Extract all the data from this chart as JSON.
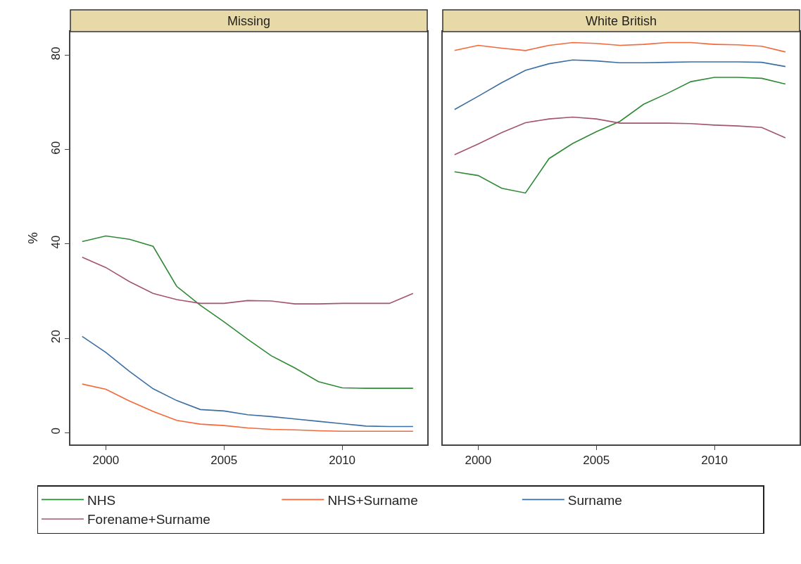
{
  "chart_data": [
    {
      "type": "line",
      "title": "Missing",
      "ylabel": "%",
      "x": [
        1999,
        2000,
        2001,
        2002,
        2003,
        2004,
        2005,
        2006,
        2007,
        2008,
        2009,
        2010,
        2011,
        2012,
        2013
      ],
      "xlim": [
        1998.5,
        2013.6
      ],
      "xticks": [
        2000,
        2005,
        2010
      ],
      "ylim": [
        -2.5,
        85
      ],
      "yticks": [
        0,
        20,
        40,
        60,
        80
      ],
      "grid": false,
      "legend": "bottom",
      "marker": "none",
      "line_style": "solid",
      "series": [
        {
          "name": "NHS",
          "color": "#2f8a36",
          "values": [
            40.5,
            41.7,
            41,
            39.5,
            31,
            27,
            23.5,
            19.8,
            16.3,
            13.7,
            10.8,
            9.5,
            9.4,
            9.4,
            9.4
          ]
        },
        {
          "name": "NHS+Surname",
          "color": "#f4683a",
          "values": [
            10.3,
            9.2,
            6.7,
            4.5,
            2.6,
            1.8,
            1.5,
            1.0,
            0.7,
            0.6,
            0.4,
            0.3,
            0.3,
            0.3,
            0.3
          ]
        },
        {
          "name": "Surname",
          "color": "#3b6fa3",
          "values": [
            20.4,
            17,
            13,
            9.3,
            6.8,
            4.9,
            4.6,
            3.8,
            3.4,
            2.9,
            2.4,
            1.9,
            1.4,
            1.3,
            1.3
          ]
        },
        {
          "name": "Forename+Surname",
          "color": "#a3546f",
          "values": [
            37.2,
            35,
            32,
            29.5,
            28.2,
            27.4,
            27.4,
            28,
            27.9,
            27.3,
            27.3,
            27.4,
            27.4,
            27.4,
            29.5
          ]
        }
      ]
    },
    {
      "type": "line",
      "title": "White British",
      "x": [
        1999,
        2000,
        2001,
        2002,
        2003,
        2004,
        2005,
        2006,
        2007,
        2008,
        2009,
        2010,
        2011,
        2012,
        2013
      ],
      "xlim": [
        1998.5,
        2013.6
      ],
      "xticks": [
        2000,
        2005,
        2010
      ],
      "ylim": [
        -2.5,
        85
      ],
      "tick_labels": "x",
      "grid": false,
      "marker": "none",
      "line_style": "solid",
      "series": [
        {
          "color": "#2f8a36",
          "values": [
            55.3,
            54.5,
            51.8,
            50.8,
            58.1,
            61.3,
            63.8,
            66.0,
            69.6,
            71.9,
            74.4,
            75.3,
            75.3,
            75.1,
            73.9
          ]
        },
        {
          "color": "#f4683a",
          "values": [
            81.0,
            82.1,
            81.5,
            81.0,
            82.1,
            82.7,
            82.5,
            82.1,
            82.3,
            82.7,
            82.7,
            82.3,
            82.2,
            81.9,
            80.7
          ]
        },
        {
          "color": "#3b6fa3",
          "values": [
            68.5,
            71.3,
            74.2,
            76.8,
            78.2,
            79.0,
            78.8,
            78.4,
            78.4,
            78.5,
            78.6,
            78.6,
            78.6,
            78.5,
            77.6
          ]
        },
        {
          "color": "#a3546f",
          "values": [
            58.9,
            61.2,
            63.6,
            65.7,
            66.5,
            66.9,
            66.5,
            65.6,
            65.6,
            65.6,
            65.5,
            65.2,
            65.0,
            64.7,
            62.5
          ]
        }
      ]
    }
  ]
}
